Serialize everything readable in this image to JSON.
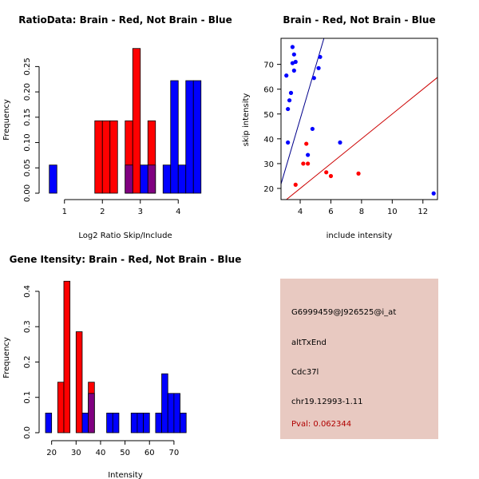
{
  "colors": {
    "red": "#ff0000",
    "blue": "#0000ff",
    "overlap": "#800080",
    "fit_red": "#cc0000",
    "fit_blue": "#00008b",
    "axis": "#000000"
  },
  "chart_data": [
    {
      "type": "bar",
      "title": "RatioData: Brain - Red, Not Brain - Blue",
      "xlabel": "Log2 Ratio Skip/Include",
      "ylabel": "Frequency",
      "xlim": [
        0.5,
        4.5
      ],
      "ylim": [
        0,
        0.29
      ],
      "x_ticks": [
        "1",
        "2",
        "3",
        "4"
      ],
      "x_tick_values": [
        1,
        2,
        3,
        4
      ],
      "y_ticks": [
        "0.00",
        "0.05",
        "0.10",
        "0.15",
        "0.20",
        "0.25"
      ],
      "y_tick_values": [
        0,
        0.05,
        0.1,
        0.15,
        0.2,
        0.25
      ],
      "bin_width": 0.2,
      "series": [
        {
          "name": "Brain",
          "color": "red",
          "bins": [
            {
              "x0": 1.8,
              "value": 0.1429
            },
            {
              "x0": 2.0,
              "value": 0.1429
            },
            {
              "x0": 2.2,
              "value": 0.1429
            },
            {
              "x0": 2.6,
              "value": 0.1429
            },
            {
              "x0": 2.8,
              "value": 0.2857
            },
            {
              "x0": 3.2,
              "value": 0.1429
            }
          ]
        },
        {
          "name": "Not Brain",
          "color": "blue",
          "bins": [
            {
              "x0": 0.6,
              "value": 0.0556
            },
            {
              "x0": 2.6,
              "value": 0.0556
            },
            {
              "x0": 3.0,
              "value": 0.0556
            },
            {
              "x0": 3.2,
              "value": 0.0556
            },
            {
              "x0": 3.6,
              "value": 0.0556
            },
            {
              "x0": 3.8,
              "value": 0.2222
            },
            {
              "x0": 4.0,
              "value": 0.0556
            },
            {
              "x0": 4.2,
              "value": 0.2222
            },
            {
              "x0": 4.4,
              "value": 0.2222
            }
          ]
        }
      ]
    },
    {
      "type": "scatter",
      "title": "Brain - Red, Not Brain - Blue",
      "xlabel": "include intensity",
      "ylabel": "skip intensity",
      "xlim": [
        2.75,
        12.95
      ],
      "ylim": [
        15.5,
        80.5
      ],
      "x_ticks": [
        "4",
        "6",
        "8",
        "10",
        "12"
      ],
      "x_tick_values": [
        4,
        6,
        8,
        10,
        12
      ],
      "y_ticks": [
        "20",
        "30",
        "40",
        "50",
        "60",
        "70"
      ],
      "y_tick_values": [
        20,
        30,
        40,
        50,
        60,
        70
      ],
      "series": [
        {
          "name": "Brain",
          "color": "red",
          "x": [
            3.7,
            4.2,
            4.4,
            4.5,
            5.7,
            6.0,
            7.8
          ],
          "y": [
            21.5,
            30.0,
            38.0,
            30.0,
            26.5,
            25.0,
            26.0
          ],
          "fit": {
            "intercept": 0.0,
            "slope": 5.0
          }
        },
        {
          "name": "Not Brain",
          "color": "blue",
          "x": [
            3.1,
            3.2,
            3.2,
            3.3,
            3.4,
            3.5,
            3.5,
            3.6,
            3.6,
            3.7,
            4.5,
            4.8,
            4.9,
            5.2,
            5.3,
            6.6,
            12.7
          ],
          "y": [
            65.5,
            52.0,
            38.5,
            55.5,
            58.5,
            77.0,
            70.5,
            74.0,
            67.5,
            71.0,
            33.5,
            44.0,
            64.5,
            68.5,
            73.0,
            38.5,
            18.0
          ],
          "fit": {
            "intercept": -36.0,
            "slope": 21.0
          }
        }
      ]
    },
    {
      "type": "bar",
      "title": "Gene Itensity: Brain - Red, Not Brain - Blue",
      "xlabel": "Intensity",
      "ylabel": "Frequency",
      "xlim": [
        17.5,
        79.5
      ],
      "ylim": [
        0,
        0.445
      ],
      "x_ticks": [
        "20",
        "30",
        "40",
        "50",
        "60",
        "70"
      ],
      "x_tick_values": [
        20,
        30,
        40,
        50,
        60,
        70
      ],
      "y_ticks": [
        "0.0",
        "0.1",
        "0.2",
        "0.3",
        "0.4"
      ],
      "y_tick_values": [
        0,
        0.1,
        0.2,
        0.3,
        0.4
      ],
      "bin_width": 2.5,
      "series": [
        {
          "name": "Brain",
          "color": "red",
          "bins": [
            {
              "x0": 22.5,
              "value": 0.1429
            },
            {
              "x0": 25.0,
              "value": 0.4286
            },
            {
              "x0": 30.0,
              "value": 0.2857
            },
            {
              "x0": 35.0,
              "value": 0.1429
            }
          ]
        },
        {
          "name": "Not Brain",
          "color": "blue",
          "bins": [
            {
              "x0": 17.5,
              "value": 0.0556
            },
            {
              "x0": 32.5,
              "value": 0.0556
            },
            {
              "x0": 35.0,
              "value": 0.1111
            },
            {
              "x0": 42.5,
              "value": 0.0556
            },
            {
              "x0": 45.0,
              "value": 0.0556
            },
            {
              "x0": 52.5,
              "value": 0.0556
            },
            {
              "x0": 55.0,
              "value": 0.0556
            },
            {
              "x0": 57.5,
              "value": 0.0556
            },
            {
              "x0": 62.5,
              "value": 0.0556
            },
            {
              "x0": 65.0,
              "value": 0.1667
            },
            {
              "x0": 67.5,
              "value": 0.1111
            },
            {
              "x0": 70.0,
              "value": 0.1111
            },
            {
              "x0": 72.5,
              "value": 0.0556
            }
          ]
        }
      ]
    }
  ],
  "info_panel": {
    "probe_id": "G6999459@J926525@i_at",
    "event_type": "altTxEnd",
    "gene": "Cdc37l",
    "location": "chr19.12993-1.11",
    "pval": "Pval: 0.062344"
  }
}
